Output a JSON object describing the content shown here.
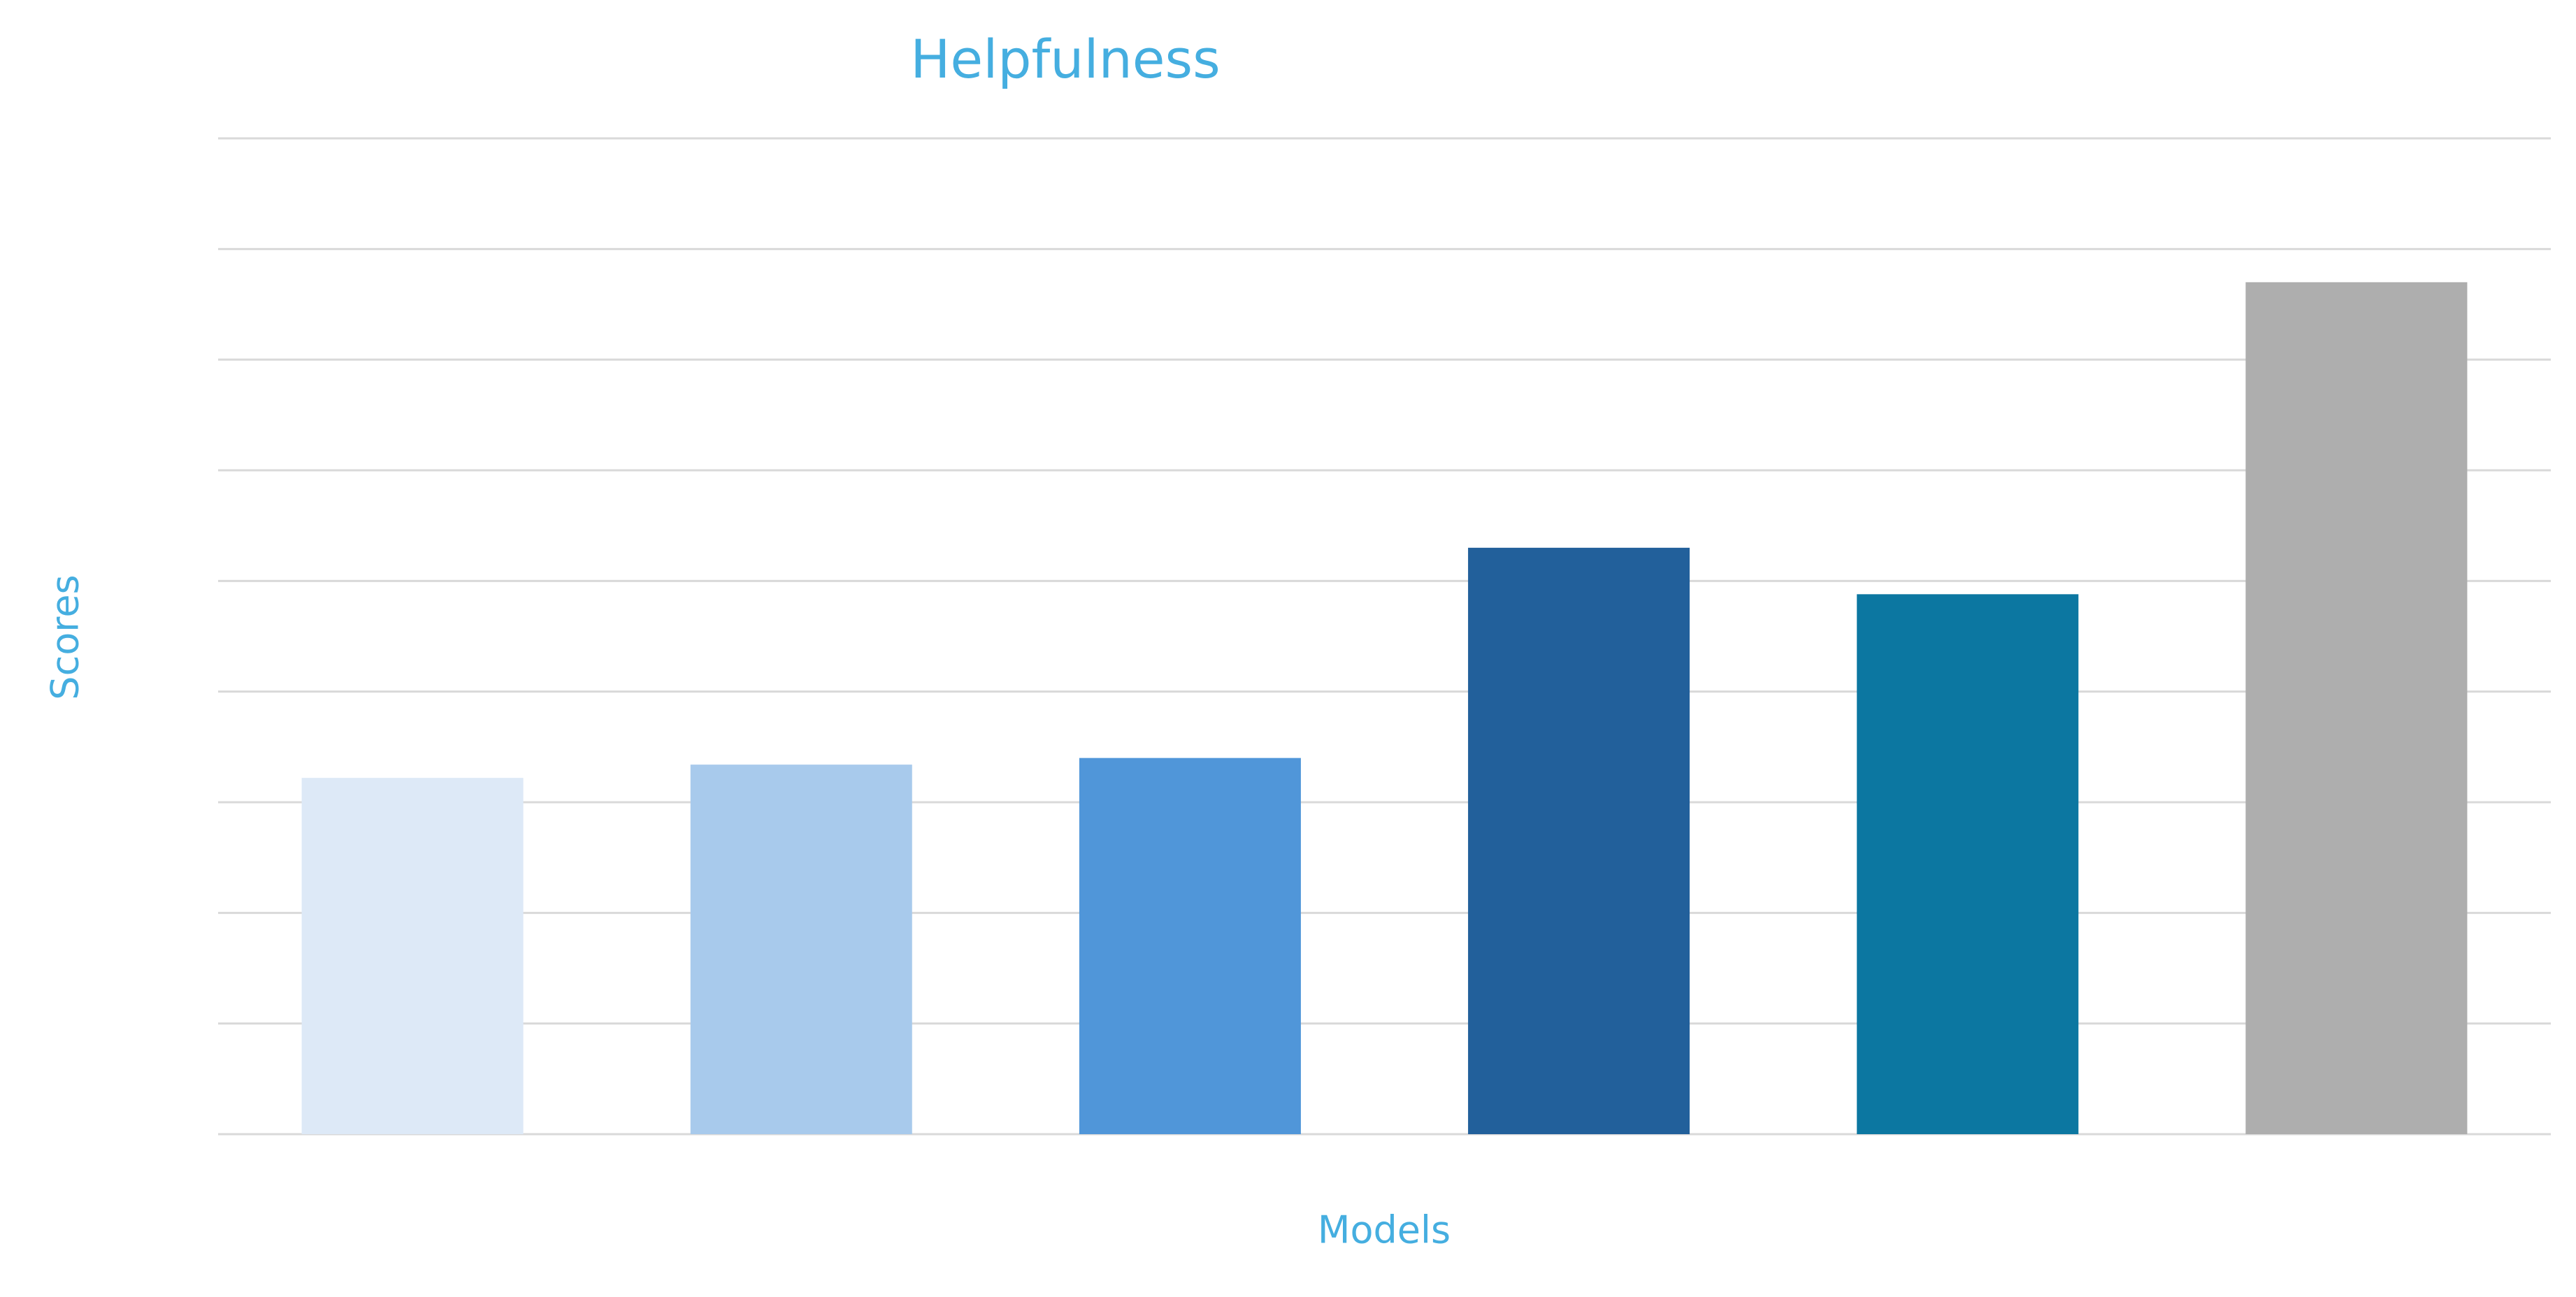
{
  "chart_data": {
    "type": "bar",
    "title": "Helpfulness",
    "x_label": "Models",
    "y_label": "Scores",
    "categories": [
      null,
      null,
      null,
      null,
      null,
      null
    ],
    "values": [
      3.22,
      3.34,
      3.4,
      5.3,
      4.88,
      7.7
    ],
    "colors": [
      "#dde9f7",
      "#a8caec",
      "#5096d9",
      "#22609b",
      "#0c77a1",
      "#aeaeae"
    ],
    "ylim": [
      0,
      9
    ],
    "yticks": [
      0,
      1,
      2,
      3,
      4,
      5,
      6,
      7,
      8,
      9
    ],
    "grid": true
  }
}
